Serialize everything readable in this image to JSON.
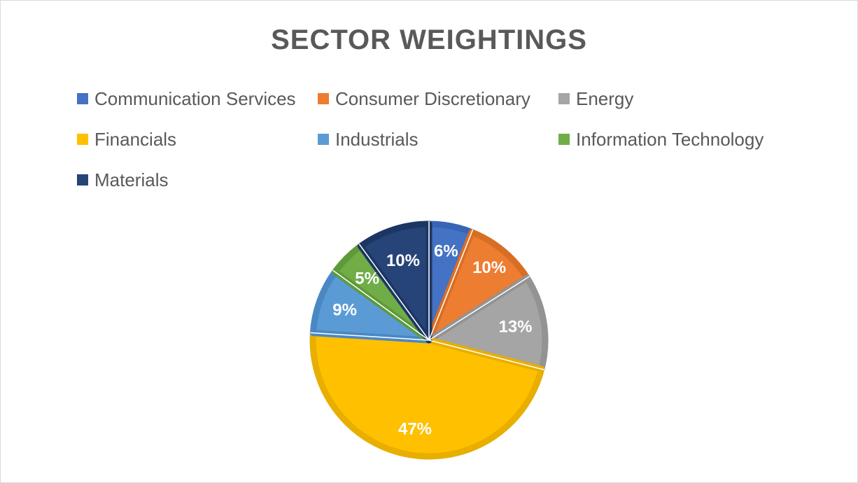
{
  "chart_data": {
    "type": "pie",
    "title": "SECTOR WEIGHTINGS",
    "categories": [
      "Communication Services",
      "Consumer Discretionary",
      "Energy",
      "Financials",
      "Industrials",
      "Information Technology",
      "Materials"
    ],
    "values": [
      6,
      10,
      13,
      47,
      9,
      5,
      10
    ],
    "data_labels": [
      "6%",
      "10%",
      "13%",
      "47%",
      "9%",
      "5%",
      "10%"
    ],
    "colors": [
      "#4472C4",
      "#ED7D31",
      "#A5A5A5",
      "#FFC000",
      "#5B9BD5",
      "#70AD47",
      "#264478"
    ],
    "edge_colors": [
      "#3864B8",
      "#D86E24",
      "#939393",
      "#E8AE00",
      "#4A88C4",
      "#5E9A39",
      "#1C3664"
    ],
    "legend_position": "top",
    "start_angle_deg": 0,
    "direction": "clockwise"
  }
}
